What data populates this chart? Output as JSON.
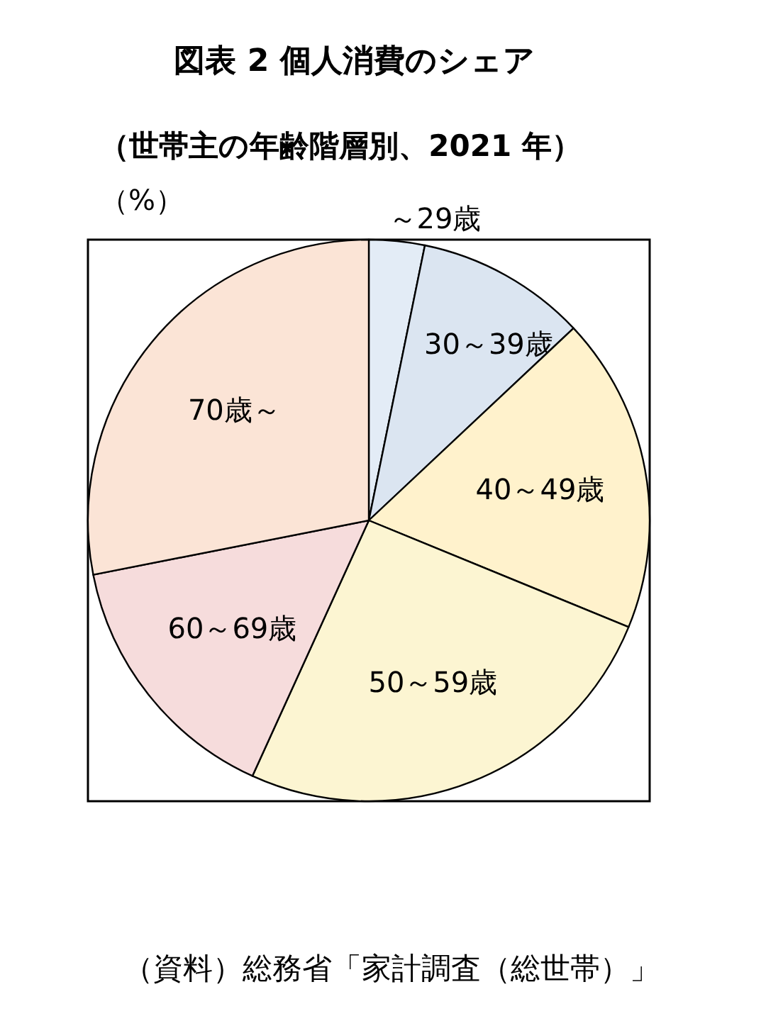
{
  "chart_data": {
    "type": "pie",
    "title": "図表 2  個人消費のシェア",
    "subtitle": "（世帯主の年齢階層別、2021 年）",
    "categories": [
      "～29歳",
      "30～39歳",
      "40～49歳",
      "50～59歳",
      "60～69歳",
      "70歳～"
    ],
    "values": [
      3.2,
      9.8,
      18.2,
      25.6,
      15.1,
      28.1
    ],
    "colors": [
      "#e3ecf6",
      "#dbe5f1",
      "#fff2cc",
      "#fcf5d2",
      "#f6dcdc",
      "#fbe4d6"
    ],
    "annotations": [
      "（%）",
      "（資料）総務省「家計調査（総世帯）」"
    ]
  }
}
